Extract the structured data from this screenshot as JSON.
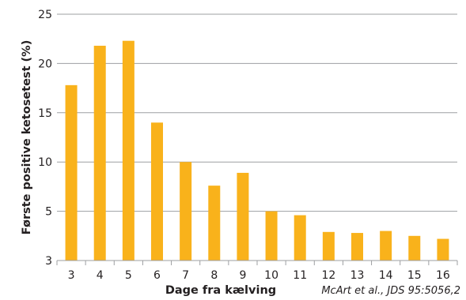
{
  "chart_data": {
    "type": "bar",
    "categories": [
      "3",
      "4",
      "5",
      "6",
      "7",
      "8",
      "9",
      "10",
      "11",
      "12",
      "13",
      "14",
      "15",
      "16"
    ],
    "series": [
      {
        "values": [
          17.8,
          21.8,
          22.3,
          14.0,
          10.0,
          7.6,
          8.9,
          5.0,
          4.6,
          2.9,
          2.8,
          3.0,
          2.5,
          2.2
        ]
      }
    ],
    "xlabel": "Dage fra kælving",
    "ylabel": "Første positive ketosetest (%)",
    "ylim": [
      0,
      25
    ],
    "yticks": [
      "3",
      "5",
      "10",
      "15",
      "20",
      "25"
    ],
    "grid": true,
    "bar_color": "#f9b21b",
    "grid_color": "#9d9fa2",
    "source": "McArt et al., JDS 95:5056,2"
  }
}
